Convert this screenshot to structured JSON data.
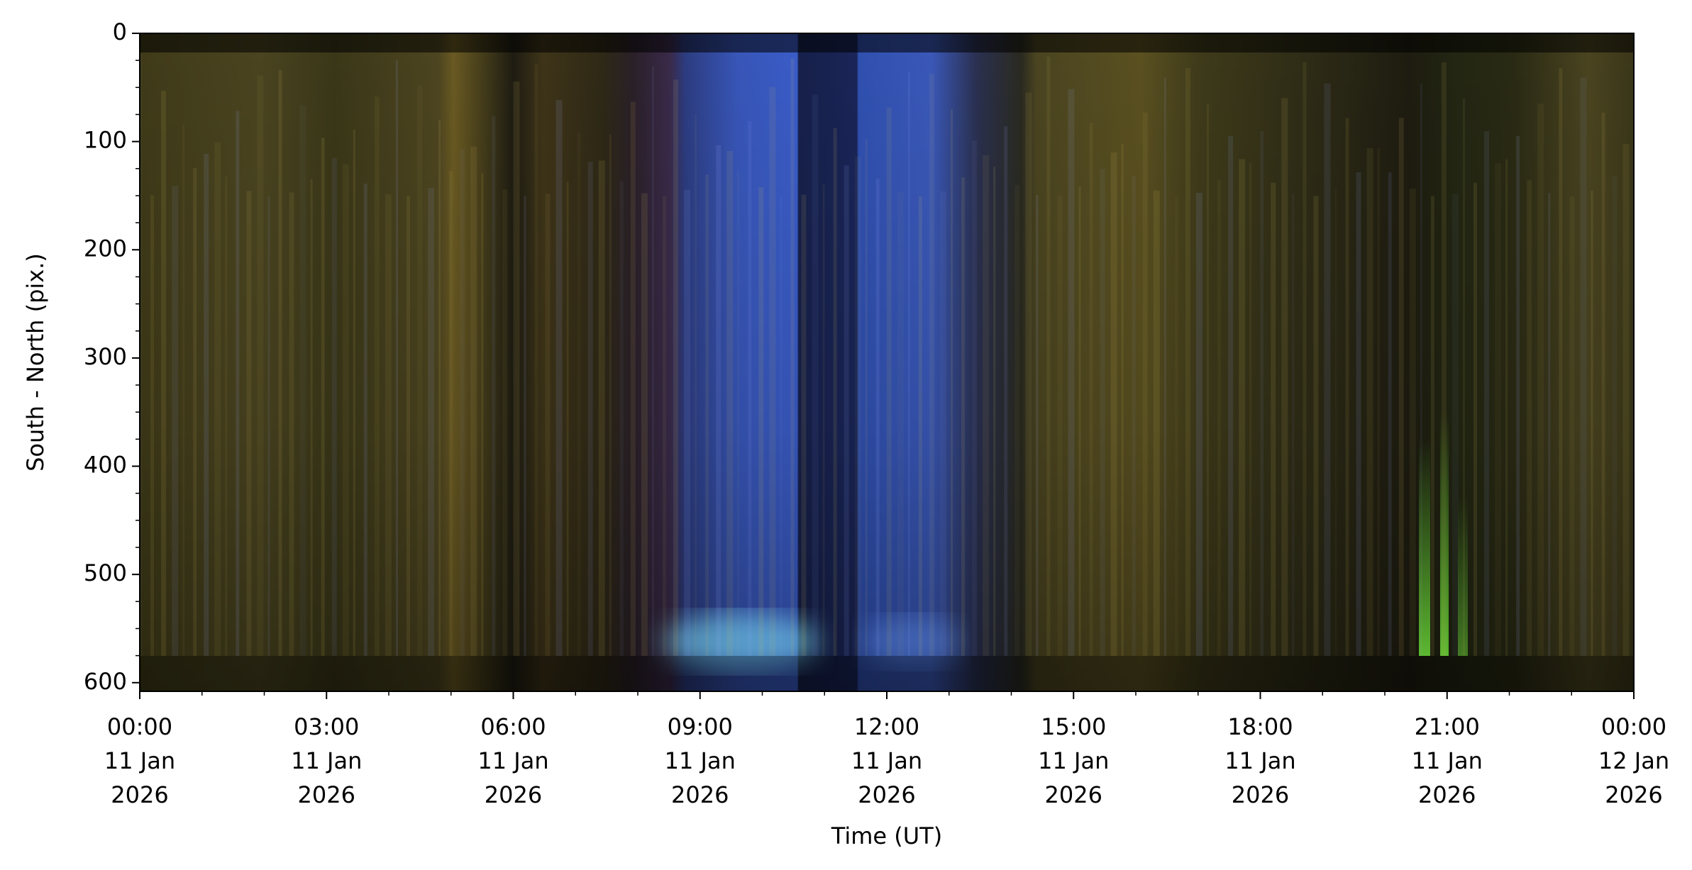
{
  "chart_data": {
    "type": "keogram",
    "xlabel": "Time (UT)",
    "ylabel": "South - North (pix.)",
    "xlim": [
      0,
      24
    ],
    "ylim": [
      608,
      0
    ],
    "xticks": [
      {
        "value": 0,
        "label": "00:00\n11 Jan\n2026"
      },
      {
        "value": 3,
        "label": "03:00\n11 Jan\n2026"
      },
      {
        "value": 6,
        "label": "06:00\n11 Jan\n2026"
      },
      {
        "value": 9,
        "label": "09:00\n11 Jan\n2026"
      },
      {
        "value": 12,
        "label": "12:00\n11 Jan\n2026"
      },
      {
        "value": 15,
        "label": "15:00\n11 Jan\n2026"
      },
      {
        "value": 18,
        "label": "18:00\n11 Jan\n2026"
      },
      {
        "value": 21,
        "label": "21:00\n11 Jan\n2026"
      },
      {
        "value": 24,
        "label": "00:00\n12 Jan\n2026"
      }
    ],
    "yticks": [
      0,
      100,
      200,
      300,
      400,
      500,
      600
    ],
    "minor_xtick_step": 1,
    "minor_ytick_step": 25
  }
}
